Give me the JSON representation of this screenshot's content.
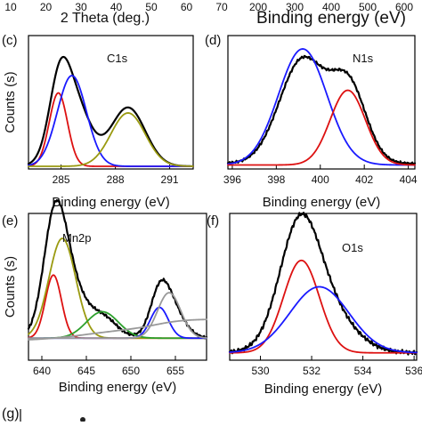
{
  "top_strip": {
    "left_ticks": [
      "10",
      "20",
      "30",
      "40",
      "50",
      "60",
      "70"
    ],
    "left_label": "2 Theta (deg.)",
    "right_ticks": [
      "200",
      "300",
      "400",
      "500",
      "600"
    ],
    "right_label": "Binding energy (eV)"
  },
  "panel_g": {
    "tag": "(g)"
  },
  "chart_data": [
    {
      "panel": "(c)",
      "type": "line",
      "title": "C1s",
      "xlabel": "Binding energy (eV)",
      "ylabel": "Counts (s)",
      "xlim": [
        283.2,
        292.3
      ],
      "ylim": [
        0,
        1.0
      ],
      "xticks": [
        285,
        288,
        291
      ],
      "grid": false,
      "series": [
        {
          "color": "#000000",
          "peaks": [
            [
              284.9,
              0.39,
              0.55
            ],
            [
              285.6,
              0.53,
              0.9
            ],
            [
              288.7,
              0.44,
              0.95
            ]
          ],
          "base": 0.02,
          "noise": 0
        },
        {
          "color": "#dd1111",
          "peaks": [
            [
              284.85,
              0.55,
              0.5
            ]
          ],
          "base": 0.02,
          "noise": 0
        },
        {
          "color": "#1a1aff",
          "peaks": [
            [
              285.6,
              0.68,
              0.8
            ]
          ],
          "base": 0.02,
          "noise": 0
        },
        {
          "color": "#9a9a10",
          "peaks": [
            [
              288.7,
              0.4,
              0.95
            ]
          ],
          "base": 0.02,
          "noise": 0
        }
      ]
    },
    {
      "panel": "(d)",
      "type": "line",
      "title": "N1s",
      "xlabel": "Binding energy (eV)",
      "ylabel": "",
      "xlim": [
        395.8,
        404.3
      ],
      "ylim": [
        0,
        1.0
      ],
      "xticks": [
        396,
        398,
        400,
        402,
        404
      ],
      "grid": false,
      "series": [
        {
          "color": "#000000",
          "peaks": [
            [
              399.2,
              0.78,
              1.05
            ],
            [
              401.3,
              0.56,
              0.8
            ]
          ],
          "base": 0.04,
          "noise": 0.01
        },
        {
          "color": "#1a1aff",
          "peaks": [
            [
              399.2,
              0.87,
              1.1
            ]
          ],
          "base": 0.03,
          "noise": 0
        },
        {
          "color": "#dd1111",
          "peaks": [
            [
              401.25,
              0.56,
              0.8
            ]
          ],
          "base": 0.03,
          "noise": 0
        }
      ]
    },
    {
      "panel": "(e)",
      "type": "line",
      "title": "Mn2p",
      "xlabel": "Binding energy (eV)",
      "ylabel": "Counts (s)",
      "xlim": [
        638.5,
        658.5
      ],
      "ylim": [
        0,
        1.0
      ],
      "xticks": [
        640,
        645,
        650,
        655
      ],
      "grid": false,
      "series": [
        {
          "color": "#000000",
          "peaks": [
            [
              641.4,
              0.55,
              1.2
            ],
            [
              642.6,
              0.46,
              1.8
            ],
            [
              646.8,
              0.14,
              1.6
            ],
            [
              653.2,
              0.18,
              1.0
            ],
            [
              654.2,
              0.25,
              1.5
            ]
          ],
          "base": 0.15,
          "noise": 0.01
        },
        {
          "color": "#dd1111",
          "peaks": [
            [
              641.3,
              0.43,
              0.9
            ]
          ],
          "base": 0.15,
          "noise": 0
        },
        {
          "color": "#9a9a10",
          "peaks": [
            [
              642.3,
              0.68,
              1.5
            ]
          ],
          "base": 0.15,
          "noise": 0
        },
        {
          "color": "#2ca02c",
          "peaks": [
            [
              646.8,
              0.18,
              1.8
            ]
          ],
          "base": 0.15,
          "noise": 0
        },
        {
          "color": "#1a1aff",
          "peaks": [
            [
              653.2,
              0.21,
              1.0
            ]
          ],
          "base": 0.15,
          "noise": 0
        },
        {
          "color": "#999999",
          "peaks": [
            [
              654.3,
              0.31,
              1.3
            ]
          ],
          "base": 0.15,
          "noise": 0
        },
        {
          "color": "#999999",
          "peaks": [],
          "base": 0.13,
          "noise": 0,
          "background": true
        }
      ]
    },
    {
      "panel": "(f)",
      "type": "line",
      "title": "O1s",
      "xlabel": "Binding energy (eV)",
      "ylabel": "",
      "xlim": [
        528.8,
        536.1
      ],
      "ylim": [
        0,
        1.0
      ],
      "xticks": [
        530,
        532,
        534,
        536
      ],
      "grid": false,
      "series": [
        {
          "color": "#000000",
          "peaks": [
            [
              531.5,
              0.62,
              0.75
            ],
            [
              532.2,
              0.38,
              1.15
            ]
          ],
          "base": 0.05,
          "noise": 0.015
        },
        {
          "color": "#dd1111",
          "peaks": [
            [
              531.6,
              0.63,
              0.7
            ]
          ],
          "base": 0.05,
          "noise": 0
        },
        {
          "color": "#1a1aff",
          "peaks": [
            [
              532.3,
              0.45,
              1.15
            ]
          ],
          "base": 0.05,
          "noise": 0
        }
      ]
    }
  ]
}
